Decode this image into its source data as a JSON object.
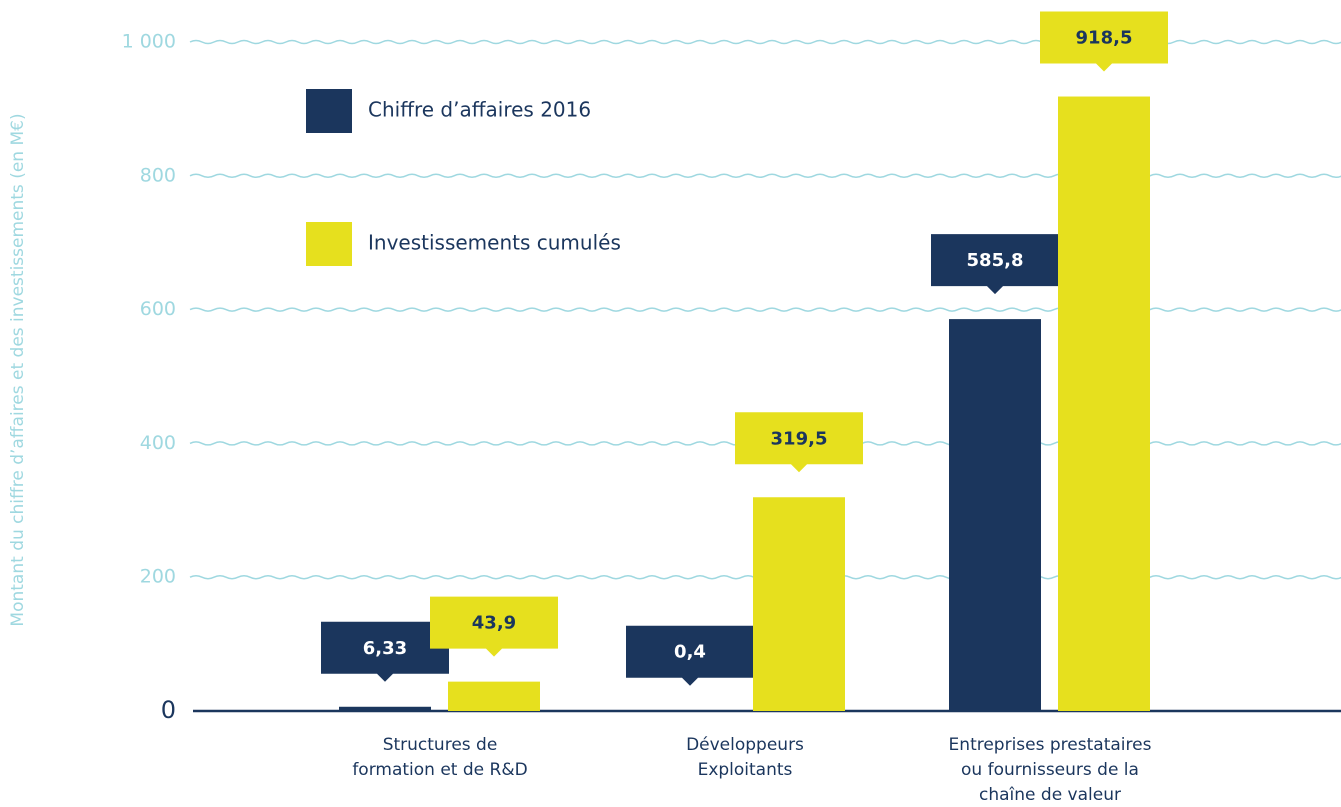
{
  "chart_data": {
    "type": "bar",
    "y_axis_label": "Montant du chiffre d’affaires et des investissements (en M€)",
    "categories": [
      [
        "Structures de",
        "formation et de R&D"
      ],
      [
        "Développeurs",
        "Exploitants"
      ],
      [
        "Entreprises prestataires",
        "ou fournisseurs de la",
        "chaîne de valeur"
      ]
    ],
    "series": [
      {
        "name": "Chiffre d’affaires 2016",
        "color": "#1b365d",
        "label_color": "#ffffff",
        "values": [
          6.33,
          0.4,
          585.8
        ],
        "value_labels": [
          "6,33",
          "0,4",
          "585,8"
        ]
      },
      {
        "name": "Investissements cumulés",
        "color": "#e6e01e",
        "label_color": "#1b365d",
        "values": [
          43.9,
          319.5,
          918.5
        ],
        "value_labels": [
          "43,9",
          "319,5",
          "918,5"
        ]
      }
    ],
    "ylim": [
      0,
      1000
    ],
    "yticks": [
      0,
      200,
      400,
      600,
      800,
      {
        "value": 1000,
        "label": "1 000"
      }
    ],
    "grid": true,
    "grid_color": "#9fd8e0",
    "axis_color": "#1b365d"
  }
}
